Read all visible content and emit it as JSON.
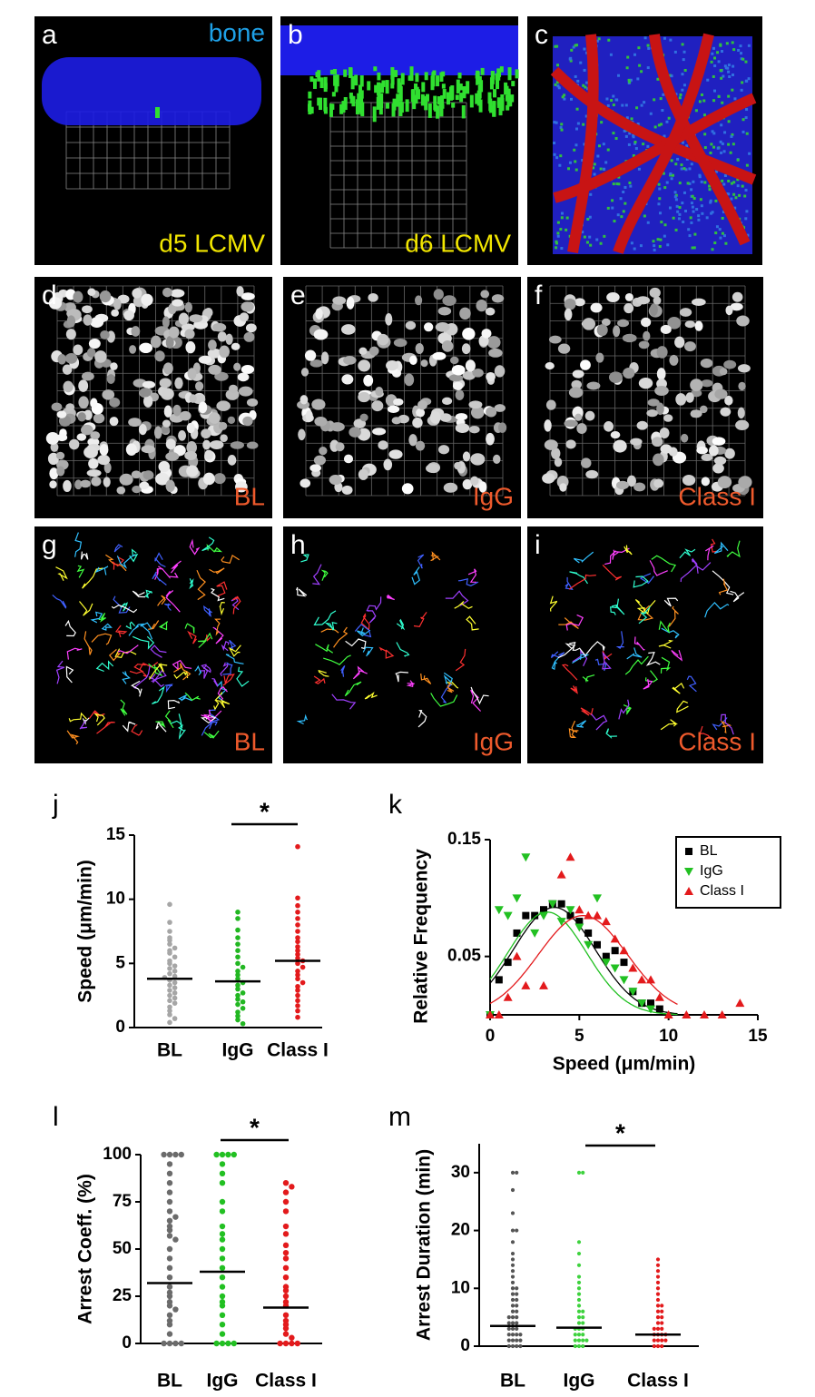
{
  "panels": [
    {
      "letter": "a",
      "top_label": "bone",
      "bottom_label": "d5 LCMV"
    },
    {
      "letter": "b",
      "bottom_label": "d6 LCMV"
    },
    {
      "letter": "c"
    },
    {
      "letter": "d",
      "bottom_label": "BL"
    },
    {
      "letter": "e",
      "bottom_label": "IgG"
    },
    {
      "letter": "f",
      "bottom_label": "Class I"
    },
    {
      "letter": "g",
      "bottom_label": "BL"
    },
    {
      "letter": "h",
      "bottom_label": "IgG"
    },
    {
      "letter": "i",
      "bottom_label": "Class I"
    }
  ],
  "chart_data": [
    {
      "type": "strip",
      "panel": "j",
      "ylabel": "Speed (μm/min)",
      "categories": [
        "BL",
        "IgG",
        "Class I"
      ],
      "ylim": [
        0,
        15
      ],
      "yticks": [
        0,
        5,
        10,
        15
      ],
      "significance": "*",
      "series": [
        {
          "name": "BL",
          "color": "#a6a6a6",
          "mean": 3.8,
          "values": [
            9.6,
            8.2,
            7.5,
            7,
            6.8,
            6.5,
            6.2,
            6,
            5.8,
            5.5,
            5.2,
            5,
            4.8,
            4.6,
            4.4,
            4.2,
            4,
            3.9,
            3.7,
            3.5,
            3.3,
            3.1,
            2.9,
            2.7,
            2.5,
            2.3,
            2.1,
            1.9,
            1.6,
            1.3,
            1,
            0.7,
            0.4
          ]
        },
        {
          "name": "IgG",
          "color": "#22b722",
          "mean": 3.6,
          "values": [
            9,
            8.5,
            7.6,
            7,
            6.5,
            6,
            5.5,
            5,
            4.7,
            4.4,
            4.1,
            3.8,
            3.5,
            3.3,
            3,
            2.7,
            2.5,
            2.2,
            2,
            1.8,
            1.5,
            1.2,
            0.9,
            0.6,
            0.3
          ]
        },
        {
          "name": "Class I",
          "color": "#e31a1c",
          "mean": 5.2,
          "values": [
            14.1,
            10.1,
            9.5,
            9,
            8.5,
            8,
            7.5,
            7,
            6.7,
            6.3,
            6,
            5.7,
            5.4,
            5.2,
            5,
            4.7,
            4.4,
            4.1,
            3.8,
            3.5,
            3.2,
            2.9,
            2.5,
            2.1,
            1.7,
            1.3,
            0.8
          ]
        }
      ]
    },
    {
      "type": "scatter",
      "panel": "k",
      "xlabel": "Speed (μm/min)",
      "ylabel": "Relative Frequency",
      "xlim": [
        0,
        15
      ],
      "xticks": [
        0,
        5,
        10,
        15
      ],
      "ylim": [
        0,
        0.15
      ],
      "yticks": [
        0.05,
        0.15
      ],
      "legend": "top-right",
      "series": [
        {
          "name": "BL",
          "color": "#000000",
          "marker": "square",
          "fit": {
            "mu": 3.6,
            "sigma": 2.3,
            "peak": 0.092
          },
          "x": [
            0,
            0.5,
            1,
            1.5,
            2,
            2.5,
            3,
            3.5,
            4,
            4.5,
            5,
            5.5,
            6,
            6.5,
            7,
            7.5,
            8,
            8.5,
            9,
            9.5
          ],
          "values": [
            0,
            0.03,
            0.045,
            0.07,
            0.085,
            0.085,
            0.09,
            0.095,
            0.095,
            0.085,
            0.08,
            0.07,
            0.06,
            0.05,
            0.055,
            0.045,
            0.02,
            0.01,
            0.01,
            0.005
          ]
        },
        {
          "name": "IgG",
          "color": "#22c022",
          "marker": "triangle-down",
          "fit": {
            "mu": 3.2,
            "sigma": 2.2,
            "peak": 0.088
          },
          "x": [
            0,
            0.5,
            1,
            1.5,
            2,
            2.5,
            3,
            3.5,
            4,
            4.5,
            5,
            5.5,
            6,
            6.5,
            7,
            7.5,
            8,
            8.5,
            9
          ],
          "values": [
            0,
            0.09,
            0.085,
            0.1,
            0.135,
            0.07,
            0.085,
            0.095,
            0.08,
            0.09,
            0.075,
            0.06,
            0.1,
            0.045,
            0.04,
            0.03,
            0.02,
            0.01,
            0.005
          ]
        },
        {
          "name": "Class I",
          "color": "#e31a1c",
          "marker": "triangle-up",
          "fit": {
            "mu": 5.2,
            "sigma": 2.5,
            "peak": 0.085
          },
          "x": [
            0,
            0.5,
            1,
            1.5,
            2,
            3,
            4,
            4.5,
            5,
            5.5,
            6,
            6.5,
            7,
            7.5,
            8,
            8.5,
            9,
            9.5,
            10,
            11,
            12,
            13,
            14
          ],
          "values": [
            0,
            0,
            0.015,
            0.05,
            0.025,
            0.025,
            0.12,
            0.135,
            0.09,
            0.085,
            0.085,
            0.08,
            0.065,
            0.055,
            0.04,
            0.03,
            0.03,
            0.015,
            0,
            0,
            0,
            0,
            0.01
          ]
        }
      ]
    },
    {
      "type": "strip",
      "panel": "l",
      "ylabel": "Arrest Coeff. (%)",
      "categories": [
        "BL",
        "IgG",
        "Class I"
      ],
      "ylim": [
        0,
        100
      ],
      "yticks": [
        0,
        25,
        50,
        75,
        100
      ],
      "significance": "*",
      "series": [
        {
          "name": "BL",
          "color": "#6b6b6b",
          "mean": 32,
          "values": [
            100,
            100,
            100,
            100,
            95,
            90,
            85,
            80,
            75,
            70,
            67,
            65,
            62,
            60,
            57,
            55,
            50,
            45,
            40,
            35,
            30,
            27,
            25,
            22,
            20,
            18,
            15,
            12,
            10,
            5,
            0,
            0,
            0,
            0
          ]
        },
        {
          "name": "IgG",
          "color": "#22c022",
          "mean": 38,
          "values": [
            100,
            100,
            100,
            100,
            95,
            90,
            85,
            75,
            70,
            62,
            58,
            55,
            50,
            45,
            40,
            35,
            30,
            25,
            22,
            20,
            15,
            10,
            5,
            0,
            0,
            0,
            0
          ]
        },
        {
          "name": "Class I",
          "color": "#e31a1c",
          "mean": 19,
          "values": [
            85,
            83,
            80,
            75,
            70,
            62,
            58,
            52,
            48,
            45,
            40,
            35,
            30,
            28,
            25,
            22,
            20,
            15,
            12,
            10,
            8,
            5,
            3,
            0,
            0,
            0,
            0
          ]
        }
      ]
    },
    {
      "type": "strip",
      "panel": "m",
      "ylabel": "Arrest Duration (min)",
      "categories": [
        "BL",
        "IgG",
        "Class I"
      ],
      "ylim": [
        0,
        35
      ],
      "yticks": [
        0,
        10,
        20,
        30
      ],
      "significance": "*",
      "series": [
        {
          "name": "BL",
          "color": "#555555",
          "mean": 3.5,
          "values": [
            30,
            30,
            27,
            23,
            20,
            20,
            18,
            16,
            15,
            14,
            13,
            12,
            11,
            10,
            10,
            9,
            9,
            8,
            8,
            7,
            7,
            6,
            6,
            5,
            5,
            5,
            4,
            4,
            4,
            3,
            3,
            3,
            2,
            2,
            2,
            2,
            1,
            1,
            1,
            1,
            0,
            0,
            0,
            0
          ]
        },
        {
          "name": "IgG",
          "color": "#3ed23e",
          "mean": 3.2,
          "values": [
            30,
            30,
            18,
            16,
            14,
            12,
            11,
            10,
            9,
            8,
            7,
            6,
            6,
            5,
            5,
            4,
            4,
            3,
            3,
            3,
            2,
            2,
            2,
            1,
            1,
            1,
            1,
            0,
            0,
            0
          ]
        },
        {
          "name": "Class I",
          "color": "#e31a1c",
          "mean": 2,
          "values": [
            15,
            14,
            13,
            12,
            11,
            10,
            9,
            8,
            7,
            7,
            6,
            6,
            5,
            5,
            4,
            4,
            3,
            3,
            3,
            2,
            2,
            2,
            2,
            1,
            1,
            1,
            1,
            0,
            0,
            0
          ]
        }
      ]
    }
  ]
}
